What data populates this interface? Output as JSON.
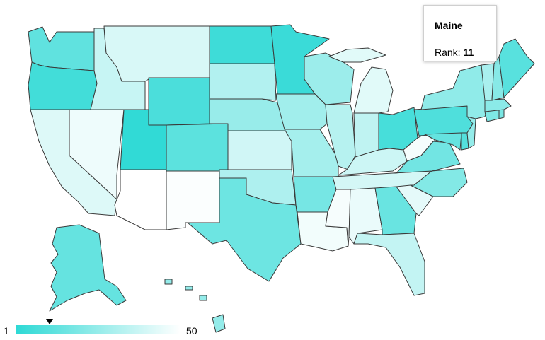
{
  "tooltip": {
    "state": "Maine",
    "rank_label": "Rank: ",
    "rank_value": "11"
  },
  "legend": {
    "min": "1",
    "max": "50",
    "low_color": "#2dd9d5",
    "high_color": "#ffffff",
    "marker_value": 11
  },
  "states": {
    "WA": 13,
    "OR": 6,
    "CA": 42,
    "NV": 46,
    "ID": 37,
    "MT": 41,
    "WY": 8,
    "UT": 2,
    "AZ": 50,
    "CO": 12,
    "NM": 49,
    "ND": 5,
    "SD": 32,
    "NE": 26,
    "KS": 39,
    "OK": 31,
    "TX": 16,
    "MN": 4,
    "IA": 28,
    "MO": 29,
    "AR": 18,
    "LA": 47,
    "WI": 27,
    "IL": 33,
    "MI": 43,
    "IN": 35,
    "OH": 7,
    "KY": 38,
    "TN": 40,
    "MS": 48,
    "AL": 45,
    "GA": 15,
    "FL": 36,
    "SC": 44,
    "NC": 21,
    "VA": 17,
    "WV": 48,
    "PA": 9,
    "NY": 24,
    "VT": 30,
    "NH": 22,
    "ME": 11,
    "MA": 23,
    "CT": 20,
    "NJ": 25,
    "MD": 14,
    "DE": 10,
    "RI": 19,
    "AK": 14,
    "HI": 25
  }
}
